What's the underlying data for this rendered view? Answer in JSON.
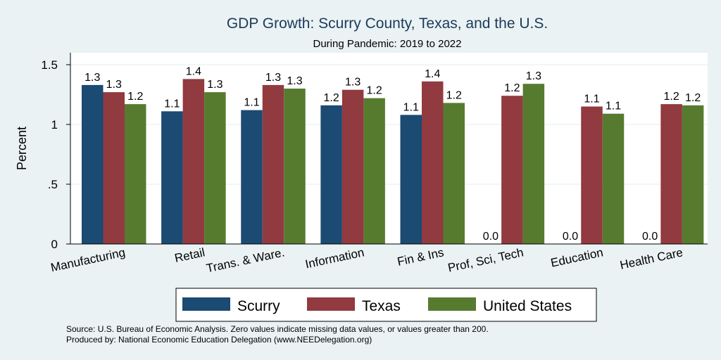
{
  "chart_data": {
    "type": "bar",
    "title": "GDP Growth: Scurry County, Texas, and the U.S.",
    "subtitle": "During Pandemic: 2019 to 2022",
    "ylabel": "Percent",
    "ylim": [
      0,
      1.6
    ],
    "yticks": [
      0,
      0.5,
      1,
      1.5
    ],
    "ytick_labels": [
      "0",
      ".5",
      "1",
      "1.5"
    ],
    "grid": true,
    "legend_position": "bottom",
    "categories": [
      "Manufacturing",
      "Retail",
      "Trans. & Ware.",
      "Information",
      "Fin & Ins",
      "Prof, Sci, Tech",
      "Education",
      "Health Care"
    ],
    "series": [
      {
        "name": "Scurry",
        "color": "#1b4a73",
        "values": [
          1.33,
          1.11,
          1.12,
          1.16,
          1.08,
          0,
          0,
          0
        ],
        "labels": [
          "1.3",
          "1.1",
          "1.1",
          "1.2",
          "1.1",
          "0.0",
          "0.0",
          "0.0"
        ]
      },
      {
        "name": "Texas",
        "color": "#913a40",
        "values": [
          1.27,
          1.38,
          1.33,
          1.29,
          1.36,
          1.24,
          1.15,
          1.17
        ],
        "labels": [
          "1.3",
          "1.4",
          "1.3",
          "1.3",
          "1.4",
          "1.2",
          "1.1",
          "1.2"
        ]
      },
      {
        "name": "United States",
        "color": "#567b2f",
        "values": [
          1.17,
          1.27,
          1.3,
          1.22,
          1.18,
          1.34,
          1.09,
          1.16
        ],
        "labels": [
          "1.2",
          "1.3",
          "1.3",
          "1.2",
          "1.2",
          "1.3",
          "1.1",
          "1.2"
        ]
      }
    ],
    "notes": [
      "Source: U.S. Bureau of Economic Analysis. Zero values indicate missing data values, or values greater than 200.",
      "Produced by: National Economic Education Delegation (www.NEEDelegation.org)"
    ]
  }
}
